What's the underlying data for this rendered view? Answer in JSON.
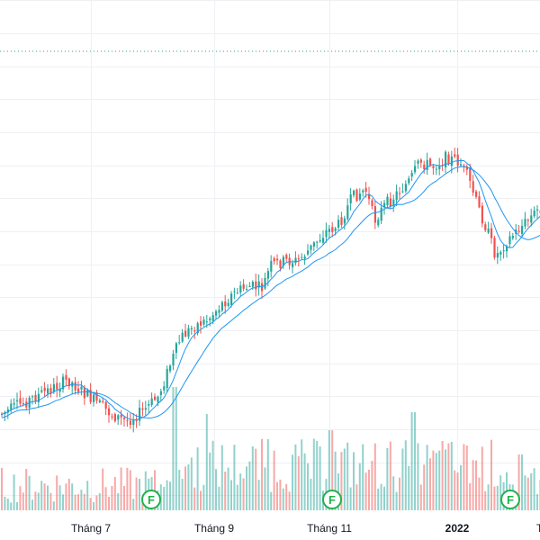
{
  "colors": {
    "up": "#26a69a",
    "down": "#ef5350",
    "up_volume": "#26a69a",
    "down_volume": "#ef5350",
    "ma_line": "#2196f3",
    "grid": "#eef0f3",
    "dotted_line": "#26a69a",
    "event_marker": "#22b14c"
  },
  "chart_data": {
    "type": "candlestick",
    "x_axis": {
      "labels": [
        {
          "text": "Tháng 7",
          "bold": false
        },
        {
          "text": "Tháng 9",
          "bold": false
        },
        {
          "text": "Tháng 11",
          "bold": false
        },
        {
          "text": "2022",
          "bold": true
        },
        {
          "text": "T",
          "bold": false
        }
      ]
    },
    "grid": true,
    "dotted_reference_line": true,
    "moving_averages": 2,
    "price_path": [
      [
        0,
        460
      ],
      [
        20,
        450
      ],
      [
        40,
        440
      ],
      [
        60,
        430
      ],
      [
        75,
        422
      ],
      [
        90,
        435
      ],
      [
        110,
        450
      ],
      [
        125,
        462
      ],
      [
        140,
        468
      ],
      [
        160,
        455
      ],
      [
        175,
        440
      ],
      [
        190,
        400
      ],
      [
        200,
        375
      ],
      [
        215,
        362
      ],
      [
        230,
        355
      ],
      [
        245,
        338
      ],
      [
        260,
        325
      ],
      [
        275,
        318
      ],
      [
        290,
        320
      ],
      [
        300,
        295
      ],
      [
        315,
        290
      ],
      [
        330,
        290
      ],
      [
        345,
        275
      ],
      [
        360,
        258
      ],
      [
        375,
        250
      ],
      [
        390,
        220
      ],
      [
        405,
        210
      ],
      [
        415,
        245
      ],
      [
        425,
        230
      ],
      [
        440,
        215
      ],
      [
        455,
        200
      ],
      [
        465,
        180
      ],
      [
        480,
        185
      ],
      [
        495,
        175
      ],
      [
        510,
        180
      ],
      [
        520,
        200
      ],
      [
        530,
        230
      ],
      [
        540,
        255
      ],
      [
        550,
        285
      ],
      [
        560,
        270
      ],
      [
        575,
        255
      ],
      [
        585,
        245
      ],
      [
        600,
        230
      ]
    ],
    "volume_spikes": [
      [
        193,
        430
      ],
      [
        228,
        460
      ],
      [
        297,
        488
      ],
      [
        366,
        478
      ],
      [
        458,
        458
      ],
      [
        490,
        490
      ],
      [
        518,
        495
      ],
      [
        577,
        505
      ]
    ],
    "event_markers": [
      {
        "label": "F"
      },
      {
        "label": "F"
      },
      {
        "label": "F"
      }
    ]
  }
}
